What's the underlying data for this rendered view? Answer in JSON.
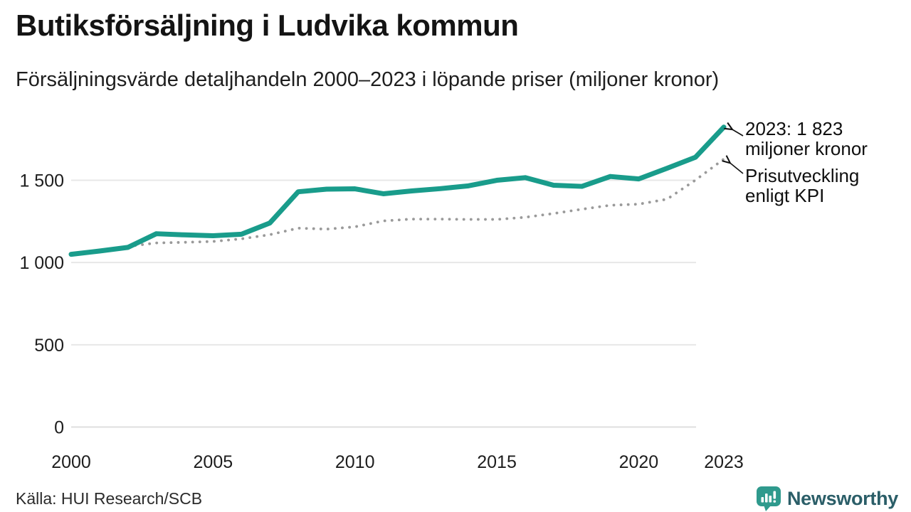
{
  "title": "Butiksförsäljning i Ludvika kommun",
  "subtitle": "Försäljningsvärde detaljhandeln 2000–2023 i löpande priser (miljoner kronor)",
  "source": "Källa: HUI Research/SCB",
  "logo": {
    "brand": "Newsworthy",
    "icon": "speech-bubble-bar-chart",
    "icon_color": "#2f9a8d",
    "text_color": "#2b5e68"
  },
  "annotations": [
    {
      "line1": "2023: 1 823",
      "line2": "miljoner kronor",
      "points_to": "sales-line-2023-end"
    },
    {
      "line1": "Prisutveckling",
      "line2": "enligt KPI",
      "points_to": "kpi-line-2023-end"
    }
  ],
  "colors": {
    "sales_line": "#199c8b",
    "kpi_line": "#9a9a9a",
    "grid": "#e7e7e7",
    "zero_line": "#dfdfdf",
    "text": "#1d1d1d"
  },
  "chart_data": {
    "type": "line",
    "title": "Butiksförsäljning i Ludvika kommun",
    "subtitle": "Försäljningsvärde detaljhandeln 2000–2023 i löpande priser (miljoner kronor)",
    "xlabel": "",
    "ylabel": "miljoner kronor",
    "grid": "horizontal",
    "x": [
      2000,
      2001,
      2002,
      2003,
      2004,
      2005,
      2006,
      2007,
      2008,
      2009,
      2010,
      2011,
      2012,
      2013,
      2014,
      2015,
      2016,
      2017,
      2018,
      2019,
      2020,
      2021,
      2022,
      2023
    ],
    "series": [
      {
        "name": "Försäljningsvärde i löpande priser",
        "style": "solid",
        "color": "#199c8b",
        "values": [
          1050,
          1070,
          1092,
          1175,
          1168,
          1163,
          1172,
          1240,
          1430,
          1446,
          1448,
          1418,
          1435,
          1449,
          1466,
          1500,
          1516,
          1470,
          1463,
          1523,
          1508,
          1573,
          1640,
          1823
        ]
      },
      {
        "name": "Prisutveckling enligt KPI",
        "style": "dotted",
        "color": "#9a9a9a",
        "values": [
          1050,
          1075,
          1098,
          1119,
          1123,
          1128,
          1144,
          1169,
          1209,
          1203,
          1217,
          1253,
          1264,
          1264,
          1262,
          1262,
          1275,
          1298,
          1324,
          1348,
          1355,
          1385,
          1501,
          1629
        ]
      }
    ],
    "highlight_value": {
      "year": 2023,
      "value": 1823,
      "label": "2023: 1 823 miljoner kronor"
    },
    "xticks": [
      2000,
      2005,
      2010,
      2015,
      2020,
      2023
    ],
    "yticks": [
      0,
      500,
      1000,
      1500
    ],
    "ytick_labels": [
      "0",
      "500",
      "1 000",
      "1 500"
    ],
    "xlim": [
      2000,
      2023
    ],
    "ylim": [
      0,
      1950
    ],
    "legend_position": "annotated-right"
  }
}
